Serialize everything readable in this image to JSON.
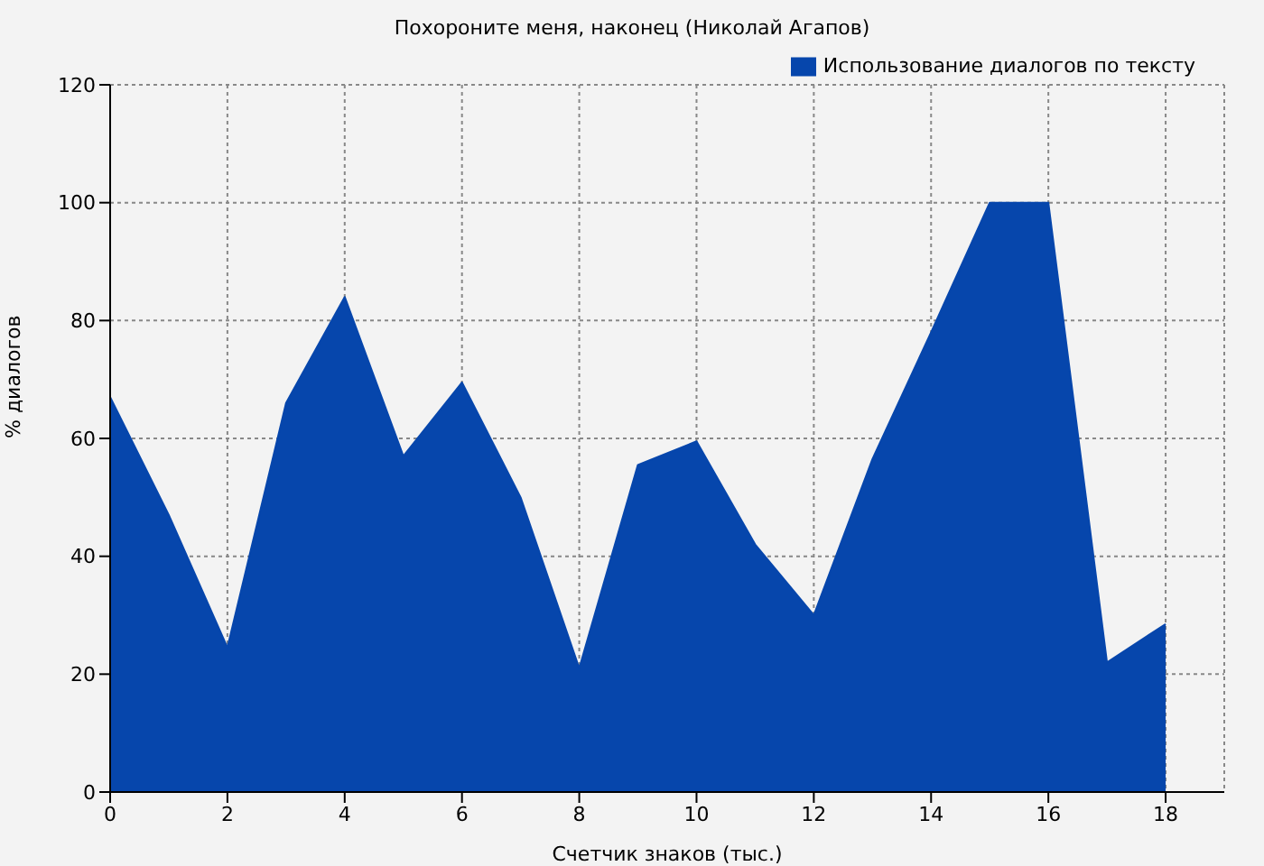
{
  "chart_data": {
    "type": "area",
    "title": "Похороните меня, наконец (Николай Агапов)",
    "xlabel": "Счетчик знаков (тыс.)",
    "ylabel": "% диалогов",
    "x": [
      0,
      1,
      2,
      3,
      4,
      5,
      6,
      7,
      8,
      9,
      10,
      11,
      12,
      13,
      14,
      15,
      16,
      17,
      18
    ],
    "series": [
      {
        "name": "Использование диалогов по тексту",
        "color": "#0646ac",
        "values": [
          67,
          47,
          24.5,
          66,
          84,
          57,
          69.5,
          50,
          21,
          55.5,
          59.5,
          42,
          30,
          56.5,
          78,
          100,
          100,
          22,
          28.5
        ]
      }
    ],
    "xlim": [
      0,
      19
    ],
    "xticks": [
      0,
      2,
      4,
      6,
      8,
      10,
      12,
      14,
      16,
      18
    ],
    "ylim": [
      0,
      120
    ],
    "yticks": [
      0,
      20,
      40,
      60,
      80,
      100,
      120
    ],
    "grid": true,
    "legend": "top right"
  }
}
